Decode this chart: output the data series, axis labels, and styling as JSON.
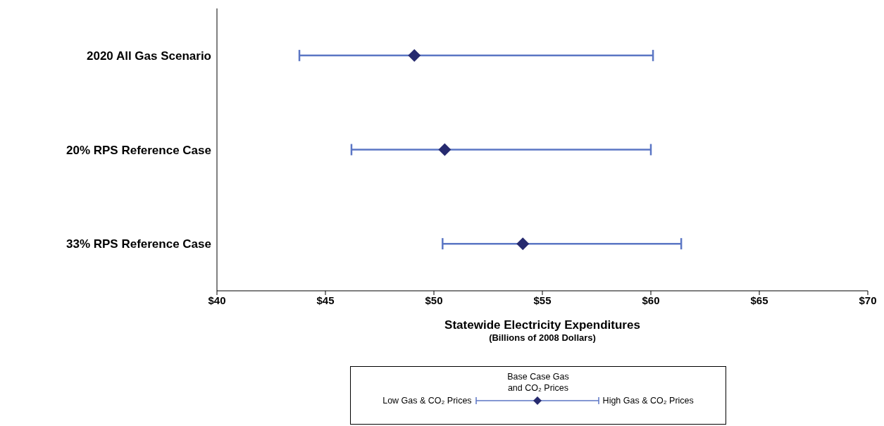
{
  "chart_data": {
    "type": "scatter",
    "orientation": "horizontal",
    "categories": [
      "2020 All Gas Scenario",
      "20% RPS Reference Case",
      "33% RPS Reference Case"
    ],
    "series": [
      {
        "name": "Base Case Gas and CO₂ Prices",
        "color": "#262a6f",
        "values": [
          49.1,
          50.5,
          54.1
        ],
        "errors": [
          [
            43.8,
            60.1
          ],
          [
            46.2,
            60.0
          ],
          [
            50.4,
            61.4
          ]
        ]
      }
    ],
    "marker": "diamond",
    "xlim": [
      40,
      70
    ],
    "xticks": [
      {
        "value": 40,
        "label": "$40"
      },
      {
        "value": 45,
        "label": "$45"
      },
      {
        "value": 50,
        "label": "$50"
      },
      {
        "value": 55,
        "label": "$55"
      },
      {
        "value": 60,
        "label": "$60"
      },
      {
        "value": 65,
        "label": "$65"
      },
      {
        "value": 70,
        "label": "$70"
      }
    ],
    "xlabel": "Statewide Electricity Expenditures",
    "annotations": [
      "(Billions of 2008 Dollars)",
      "Low Gas & CO₂ Prices",
      "High Gas & CO₂ Prices"
    ],
    "legend": "bottom",
    "grid": false
  }
}
